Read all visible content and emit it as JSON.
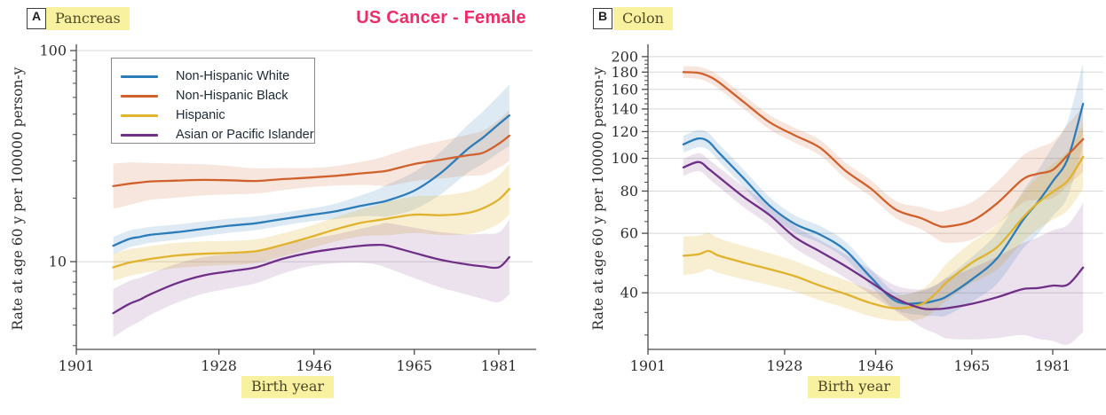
{
  "figure": {
    "title": "US Cancer - Female",
    "title_color": "#ee2c68",
    "highlight_color": "#f7f1a0",
    "background": "#ffffff"
  },
  "legend": {
    "items": [
      {
        "label": "Non-Hispanic White",
        "color": "#2b7cb9"
      },
      {
        "label": "Non-Hispanic Black",
        "color": "#d0612c"
      },
      {
        "label": "Hispanic",
        "color": "#e0b32e"
      },
      {
        "label": "Asian or Pacific Islander",
        "color": "#6f2f87"
      }
    ]
  },
  "chart_data": [
    {
      "type": "line",
      "panel_tag": "A",
      "panel_label": "Pancreas",
      "title": "US Cancer - Female",
      "xlabel": "Birth year",
      "ylabel": "Rate at age 60 y per 100000 person-y",
      "y_scale": "log",
      "grid": "horizontal",
      "legend_position": "upper-left-inside",
      "x_range": [
        1901,
        1987.4
      ],
      "y_range": [
        3.84,
        102
      ],
      "x_ticks": [
        1901,
        1928,
        1946,
        1965,
        1981
      ],
      "y_ticks_labeled": [
        100,
        10
      ],
      "y_ticks_minor": [
        90,
        80,
        70,
        60,
        50,
        40,
        30,
        20,
        9,
        8,
        7,
        6,
        5,
        4
      ],
      "y_gridlines": [
        100,
        10
      ],
      "x": [
        1908,
        1911,
        1913,
        1915,
        1920,
        1925,
        1930,
        1935,
        1940,
        1945,
        1950,
        1955,
        1958,
        1960,
        1965,
        1970,
        1975,
        1978,
        1981,
        1983
      ],
      "series": [
        {
          "name": "Non-Hispanic White",
          "color": "#2b7cb9",
          "band_opacity": 0.16,
          "band_width": [
            0.1,
            0.07,
            0.4
          ],
          "values": [
            11.9,
            12.8,
            13.1,
            13.4,
            13.8,
            14.3,
            14.8,
            15.2,
            15.9,
            16.6,
            17.3,
            18.4,
            19.0,
            19.5,
            21.7,
            26.3,
            34.0,
            38.7,
            44.8,
            49.3
          ]
        },
        {
          "name": "Non-Hispanic Black",
          "color": "#d0612c",
          "band_opacity": 0.16,
          "band_width": [
            0.28,
            0.1,
            0.32
          ],
          "values": [
            22.8,
            23.4,
            23.7,
            24.0,
            24.2,
            24.4,
            24.3,
            24.1,
            24.6,
            25.0,
            25.5,
            26.2,
            26.6,
            27.0,
            29.0,
            30.4,
            31.9,
            32.8,
            36.2,
            39.5
          ]
        },
        {
          "name": "Hispanic",
          "color": "#e0b32e",
          "band_opacity": 0.22,
          "band_width": [
            0.16,
            0.13,
            0.32
          ],
          "values": [
            9.4,
            9.9,
            10.1,
            10.3,
            10.7,
            10.9,
            11.0,
            11.2,
            12.0,
            13.0,
            14.2,
            15.3,
            15.7,
            16.0,
            16.7,
            16.6,
            17.0,
            17.9,
            19.7,
            22.1
          ]
        },
        {
          "name": "Asian or Pacific Islander",
          "color": "#6f2f87",
          "band_opacity": 0.14,
          "band_width": [
            0.3,
            0.15,
            0.5
          ],
          "values": [
            5.7,
            6.3,
            6.6,
            7.0,
            7.9,
            8.6,
            9.0,
            9.4,
            10.3,
            11.0,
            11.5,
            11.9,
            12.0,
            11.9,
            11.0,
            10.2,
            9.7,
            9.5,
            9.4,
            10.5
          ]
        }
      ]
    },
    {
      "type": "line",
      "panel_tag": "B",
      "panel_label": "Colon",
      "xlabel": "Birth year",
      "ylabel": "Rate at age 60 y per 100000 person-y",
      "y_scale": "log",
      "grid": "horizontal",
      "x_range": [
        1901,
        1991
      ],
      "y_range": [
        27.2,
        211
      ],
      "x_ticks": [
        1901,
        1928,
        1946,
        1965,
        1981
      ],
      "y_ticks_labeled": [
        200,
        180,
        160,
        140,
        120,
        100,
        80,
        60,
        40
      ],
      "y_ticks_minor": [
        195,
        190,
        185,
        175,
        170,
        165,
        155,
        150,
        145,
        135,
        130,
        125,
        115,
        110,
        105,
        95,
        90,
        85,
        75,
        70,
        65,
        55,
        50,
        45,
        35,
        30
      ],
      "y_gridlines": [
        200,
        180,
        160,
        140,
        120,
        100,
        80,
        60,
        40
      ],
      "x": [
        1908,
        1911,
        1913,
        1915,
        1920,
        1925,
        1930,
        1935,
        1940,
        1945,
        1950,
        1955,
        1958,
        1960,
        1965,
        1970,
        1975,
        1978,
        1981,
        1984,
        1987
      ],
      "series": [
        {
          "name": "Non-Hispanic White",
          "color": "#2b7cb9",
          "band_opacity": 0.16,
          "band_width": [
            0.06,
            0.06,
            0.32
          ],
          "values": [
            110,
            114.5,
            112,
            104,
            87,
            72.5,
            64,
            59.5,
            53.5,
            44.5,
            37.8,
            37.3,
            38,
            39,
            43.8,
            50.6,
            65.3,
            74,
            85.5,
            100,
            145
          ]
        },
        {
          "name": "Non-Hispanic Black",
          "color": "#d0612c",
          "band_opacity": 0.16,
          "band_width": [
            0.04,
            0.06,
            0.25
          ],
          "values": [
            180,
            179,
            175,
            168,
            146.5,
            128,
            117,
            107.5,
            92,
            81.5,
            70.5,
            66.5,
            63.5,
            62.8,
            65.3,
            73.6,
            86.5,
            90,
            92.4,
            102.4,
            114
          ]
        },
        {
          "name": "Hispanic",
          "color": "#e0b32e",
          "band_opacity": 0.22,
          "band_width": [
            0.14,
            0.09,
            0.24
          ],
          "values": [
            51.5,
            52,
            53.2,
            51.5,
            49.1,
            47,
            44.8,
            42,
            39.7,
            37.3,
            36,
            37,
            40,
            43,
            49.1,
            54.6,
            66.5,
            73.6,
            79.6,
            86,
            101
          ]
        },
        {
          "name": "Asian or Pacific Islander",
          "color": "#6f2f87",
          "band_opacity": 0.14,
          "band_width": [
            0.06,
            0.09,
            0.55
          ],
          "values": [
            94,
            97.5,
            93,
            88,
            76.7,
            68,
            58.5,
            53,
            48,
            43,
            38.5,
            36,
            35.8,
            36,
            37.1,
            38.8,
            41,
            41.3,
            42,
            42.3,
            47.5
          ]
        }
      ]
    }
  ]
}
